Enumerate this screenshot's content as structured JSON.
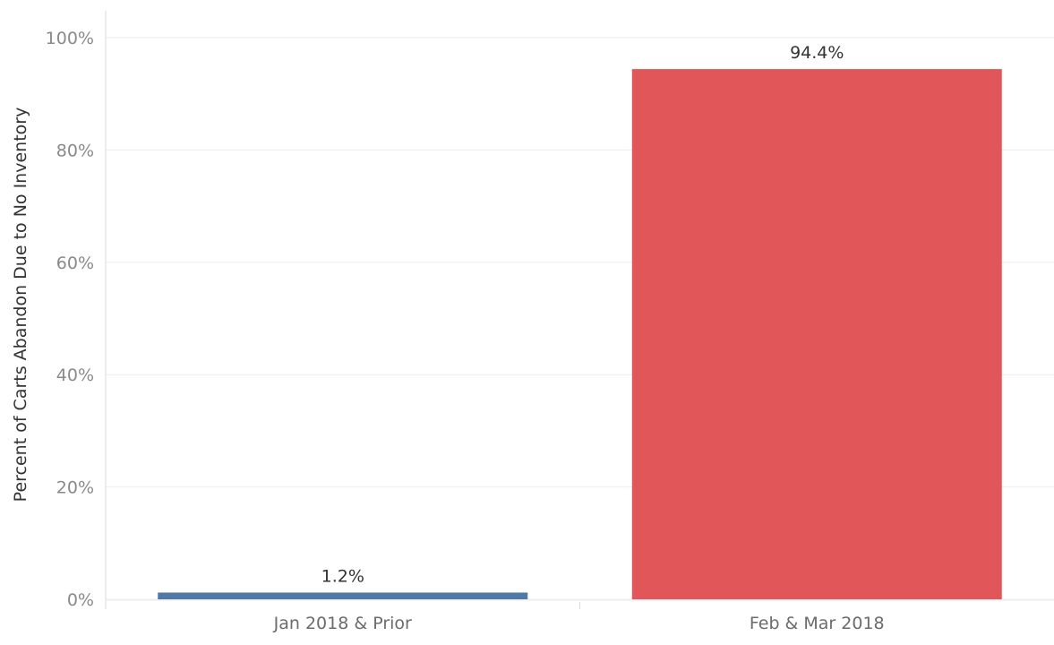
{
  "chart_data": {
    "type": "bar",
    "title": "",
    "xlabel": "",
    "ylabel": "Percent of Carts Abandon Due to No Inventory",
    "categories": [
      "Jan 2018 & Prior",
      "Feb & Mar 2018"
    ],
    "values": [
      1.2,
      94.4
    ],
    "value_labels": [
      "1.2%",
      "94.4%"
    ],
    "bar_colors": [
      "#4e79a7",
      "#e15759"
    ],
    "ylim": [
      0,
      100
    ],
    "y_ticks": [
      0,
      20,
      40,
      60,
      80,
      100
    ],
    "y_tick_labels": [
      "0%",
      "20%",
      "40%",
      "60%",
      "80%",
      "100%"
    ],
    "grid": true,
    "legend": "none"
  },
  "colors": {
    "gridline": "#ededed",
    "axis": "#d9d9d9"
  }
}
